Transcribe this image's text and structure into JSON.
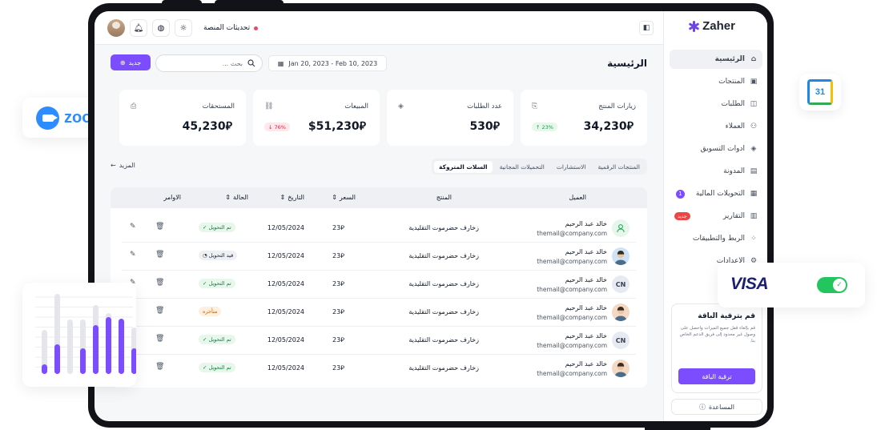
{
  "sidebar": {
    "logo": "Zaher",
    "items": [
      {
        "label": "الرئيسية",
        "icon": "home-icon",
        "glyph": "⌂",
        "active": true
      },
      {
        "label": "المنتجات",
        "icon": "box-icon",
        "glyph": "▣"
      },
      {
        "label": "الطلبات",
        "icon": "bag-icon",
        "glyph": "◫"
      },
      {
        "label": "العملاء",
        "icon": "users-icon",
        "glyph": "⚇"
      },
      {
        "label": "ادوات التسويق",
        "icon": "cube-icon",
        "glyph": "◈"
      },
      {
        "label": "المدونة",
        "icon": "blog-icon",
        "glyph": "▤"
      },
      {
        "label": "التحويلات المالية",
        "icon": "transfer-icon",
        "glyph": "▦",
        "count": "1"
      },
      {
        "label": "التقارير",
        "icon": "report-icon",
        "glyph": "▥",
        "tag": "جديد"
      },
      {
        "label": "الربط والتطبيقات",
        "icon": "apps-icon",
        "glyph": "⁘"
      },
      {
        "label": "الاعدادات",
        "icon": "settings-icon",
        "glyph": "⚙"
      }
    ],
    "upgrade": {
      "title": "قم بترقية الباقة",
      "text": "قم بإلغاء قفل جميع الميزات واحصل على وصول غير محدود إلى فريق الدعم الخاص بنا.",
      "button": "ترقية الباقة"
    },
    "help": "المساعدة"
  },
  "topbar": {
    "updates": "تحديثات المنصة"
  },
  "main": {
    "title": "الرئيسية",
    "date_range": "Jan 20, 2023 - Feb 10, 2023",
    "search_placeholder": "بحث ...",
    "new_button": "جديد",
    "cards": [
      {
        "title": "زيارات المنتج",
        "value": "34,230",
        "currency": "⃁",
        "badge": "23%",
        "trend": "up",
        "icon": "product-visits-icon"
      },
      {
        "title": "عدد الطلبات",
        "value": "530",
        "currency": "⃁",
        "icon": "orders-count-icon"
      },
      {
        "title": "المبيعات",
        "value": "$51,230",
        "currency": "⃁",
        "badge": "76%",
        "trend": "down",
        "icon": "sales-icon"
      },
      {
        "title": "المستحقات",
        "value": "45,230",
        "currency": "⃁",
        "icon": "dues-icon"
      }
    ],
    "tabs": [
      "المنتجات الرقمية",
      "الاستشارات",
      "التحميلات المجانية",
      "السلات المتروكة"
    ],
    "active_tab": 3,
    "more": "المزيد",
    "table": {
      "headers": {
        "customer": "العميل",
        "product": "المنتج",
        "price": "السعر",
        "date": "التاريخ",
        "status": "الحالة",
        "actions": "الاوامر"
      },
      "rows": [
        {
          "name": "خالد عبد الرحيم",
          "email": "themail@company.com",
          "product": "زخارف حضرموت التقليدية",
          "price": "23",
          "date": "12/05/2024",
          "status": "تم التحويل",
          "status_type": "ok",
          "avatar": "icon",
          "avatar_bg": "#e6f6ea"
        },
        {
          "name": "خالد عبد الرحيم",
          "email": "themail@company.com",
          "product": "زخارف حضرموت التقليدية",
          "price": "23",
          "date": "12/05/2024",
          "status": "قيد التحويل",
          "status_type": "transit",
          "avatar": "photo",
          "avatar_bg": "#cfe3f6"
        },
        {
          "name": "خالد عبد الرحيم",
          "email": "themail@company.com",
          "product": "زخارف حضرموت التقليدية",
          "price": "23",
          "date": "12/05/2024",
          "status": "تم التحويل",
          "status_type": "ok",
          "avatar": "CN",
          "avatar_bg": "#e6eaf3"
        },
        {
          "name": "خالد عبد الرحيم",
          "email": "themail@company.com",
          "product": "زخارف حضرموت التقليدية",
          "price": "23",
          "date": "12/05/2024",
          "status": "متأخره",
          "status_type": "late",
          "avatar": "photo",
          "avatar_bg": "#f3d9c4"
        },
        {
          "name": "خالد عبد الرحيم",
          "email": "themail@company.com",
          "product": "زخارف حضرموت التقليدية",
          "price": "23",
          "date": "12/05/2024",
          "status": "تم التحويل",
          "status_type": "ok",
          "avatar": "CN",
          "avatar_bg": "#e6eaf3"
        },
        {
          "name": "خالد عبد الرحيم",
          "email": "themail@company.com",
          "product": "زخارف حضرموت التقليدية",
          "price": "23",
          "date": "12/05/2024",
          "status": "تم التحويل",
          "status_type": "ok",
          "avatar": "photo",
          "avatar_bg": "#f3d9c4"
        }
      ]
    }
  },
  "floating": {
    "zoom": "zoom",
    "calendar_day": "31",
    "visa": "VISA",
    "bars": [
      {
        "track": 0.55,
        "fill": 0.12
      },
      {
        "track": 1.0,
        "fill": 0.37
      },
      {
        "track": 0.68,
        "fill": 0.0
      },
      {
        "track": 0.68,
        "fill": 0.32
      },
      {
        "track": 0.86,
        "fill": 0.61
      },
      {
        "track": 0.76,
        "fill": 0.71
      },
      {
        "track": 0.67,
        "fill": 0.69
      },
      {
        "track": 0.58,
        "fill": 0.32
      }
    ]
  },
  "colors": {
    "accent": "#7c4dff",
    "success": "#22c55e",
    "danger": "#e11d48",
    "zoom": "#2d8cff",
    "visa": "#1a1f71"
  }
}
